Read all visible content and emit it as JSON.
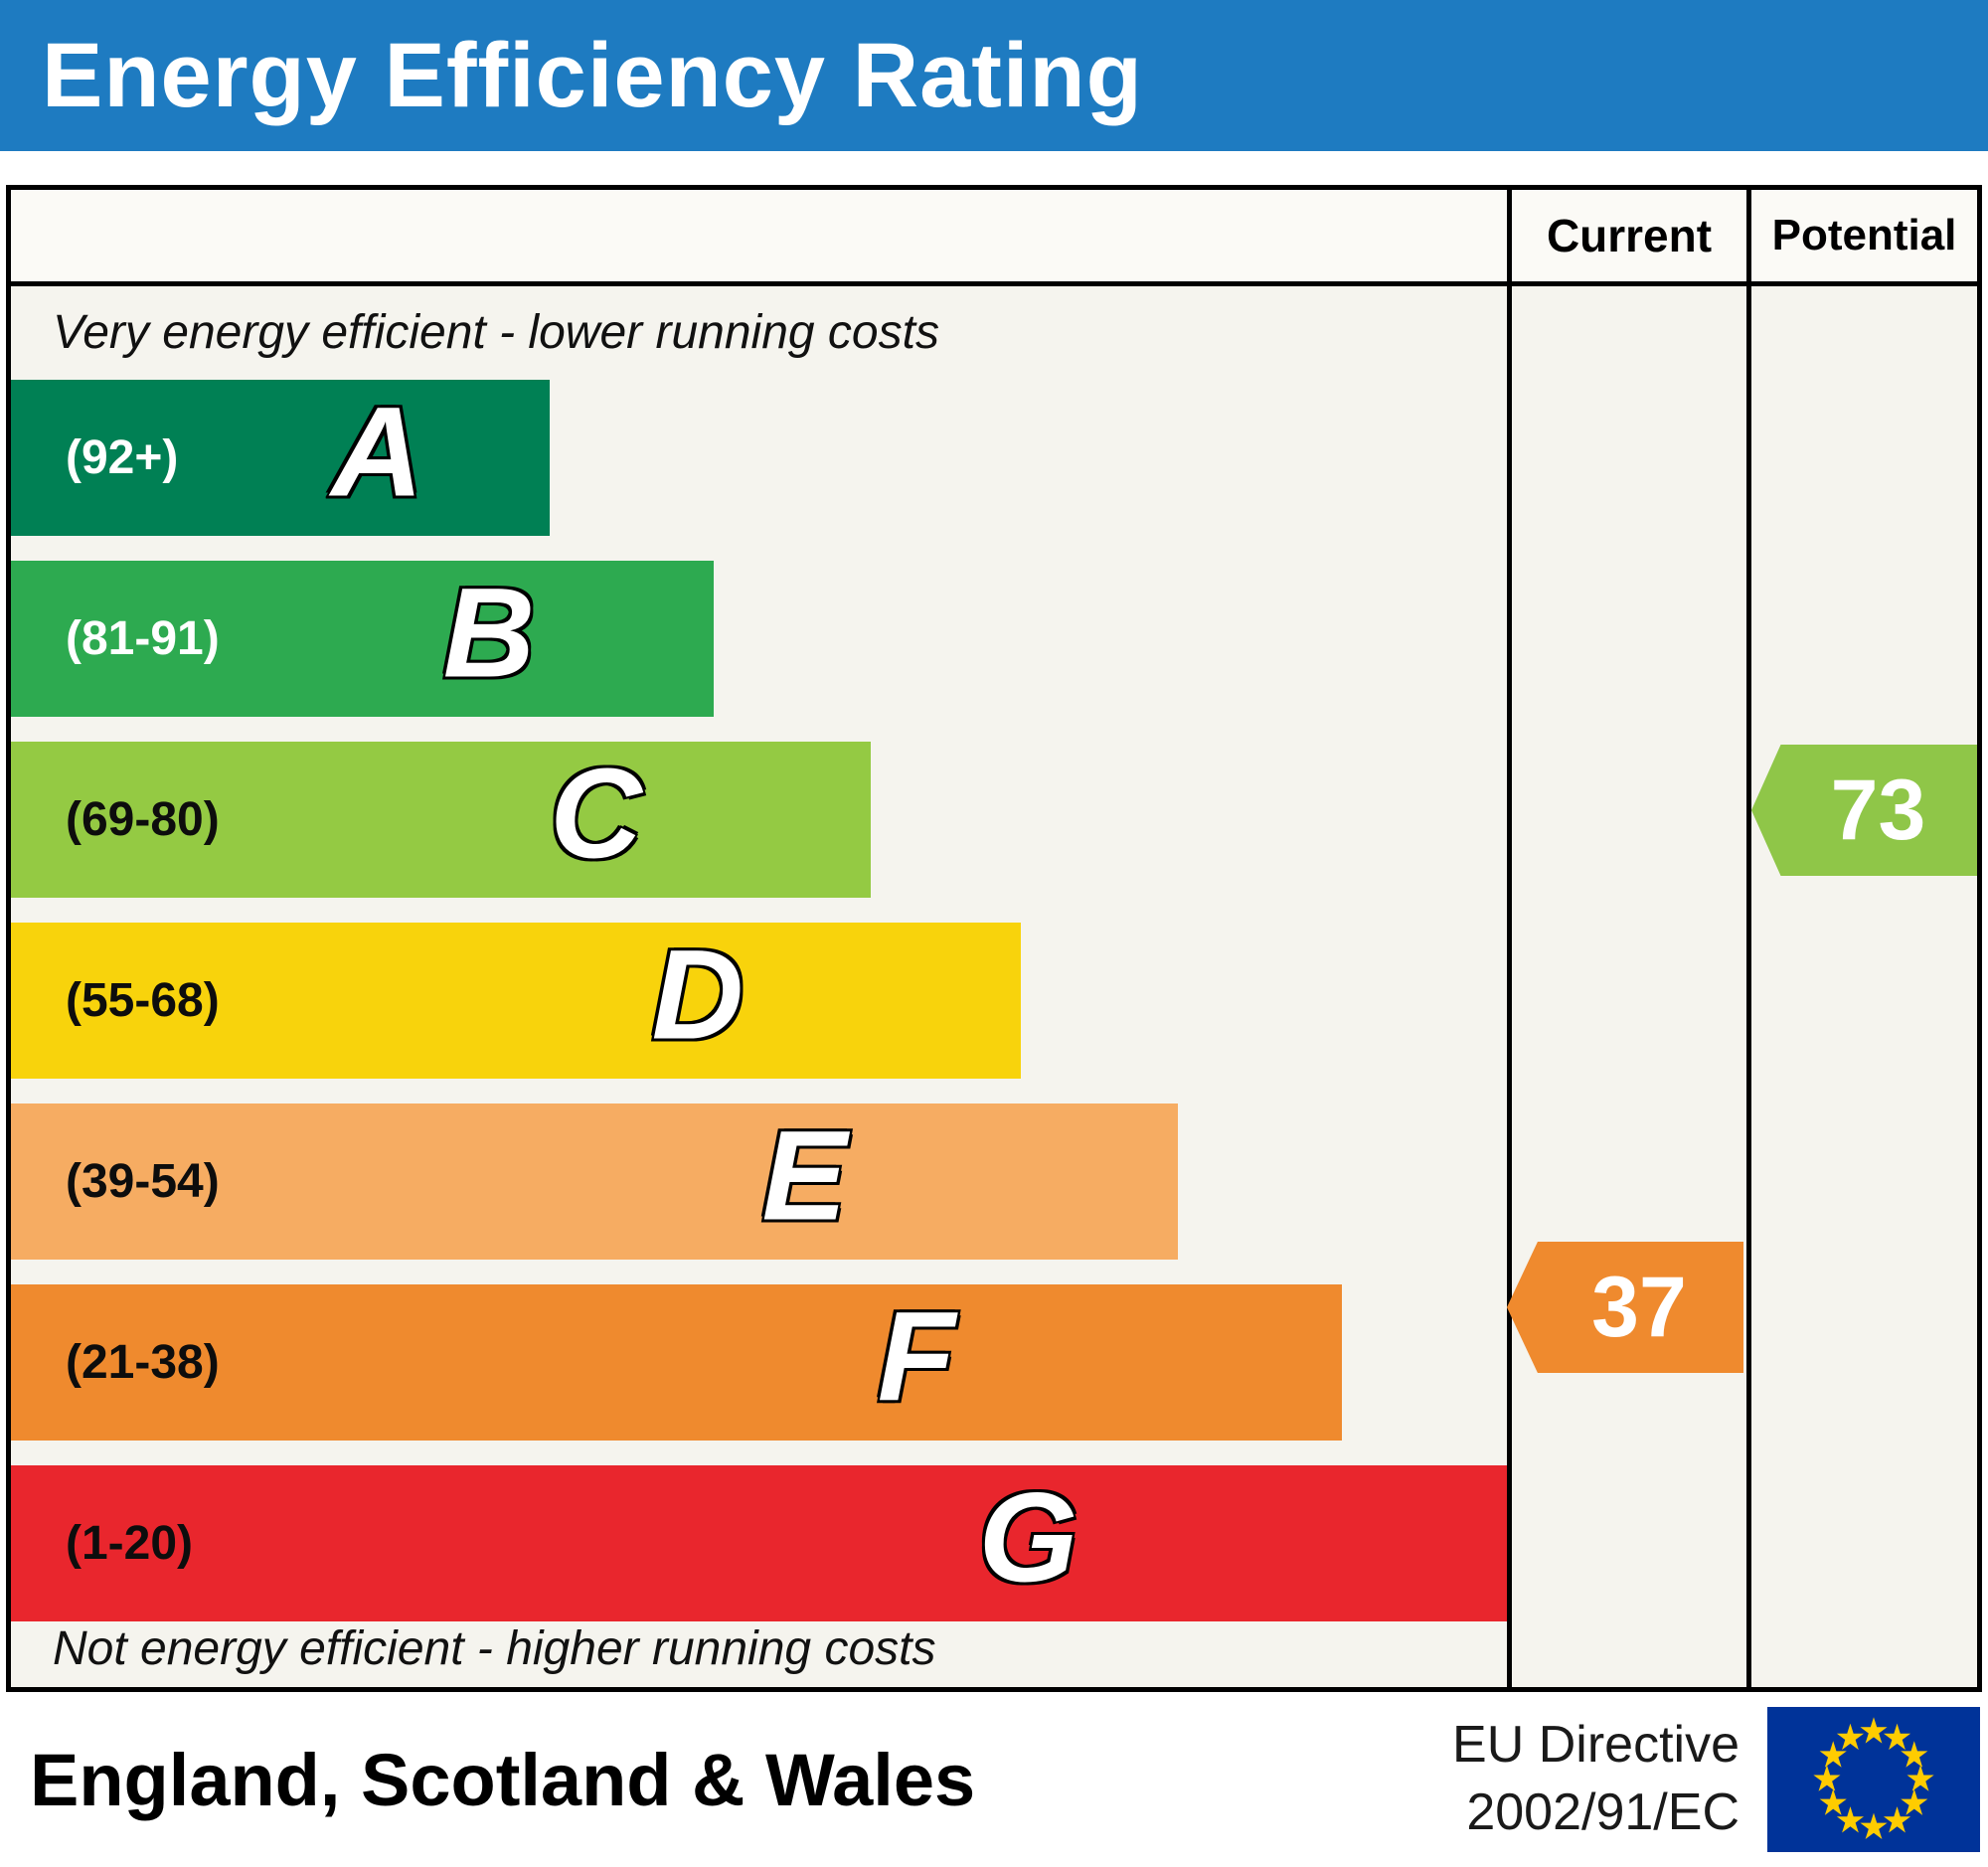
{
  "title": "Energy Efficiency Rating",
  "columns": {
    "current_label": "Current",
    "potential_label": "Potential"
  },
  "notes": {
    "top": "Very energy efficient - lower running costs",
    "bottom": "Not energy efficient - higher running costs"
  },
  "colors": {
    "header_blue": "#1e7bc1",
    "frame_background": "#f5f4ee"
  },
  "bands": [
    {
      "letter": "A",
      "range": "(92+)",
      "color": "#008054",
      "width_pct": 36,
      "text_color": "#ffffff"
    },
    {
      "letter": "B",
      "range": "(81-91)",
      "color": "#2daa50",
      "width_pct": 47,
      "text_color": "#ffffff"
    },
    {
      "letter": "C",
      "range": "(69-80)",
      "color": "#94ca43",
      "width_pct": 57.5,
      "text_color": "#0d0d0d"
    },
    {
      "letter": "D",
      "range": "(55-68)",
      "color": "#f8d30c",
      "width_pct": 67.5,
      "text_color": "#0d0d0d"
    },
    {
      "letter": "E",
      "range": "(39-54)",
      "color": "#f6ac62",
      "width_pct": 78,
      "text_color": "#0d0d0d"
    },
    {
      "letter": "F",
      "range": "(21-38)",
      "color": "#ef8a2e",
      "width_pct": 89,
      "text_color": "#0d0d0d"
    },
    {
      "letter": "G",
      "range": "(1-20)",
      "color": "#e9262d",
      "width_pct": 100,
      "text_color": "#0d0d0d"
    }
  ],
  "markers": {
    "current": {
      "value": "37",
      "color": "#ef8a2e",
      "band": "F"
    },
    "potential": {
      "value": "73",
      "color": "#8fc648",
      "band": "C"
    }
  },
  "footer": {
    "region": "England, Scotland & Wales",
    "directive_line1": "EU Directive",
    "directive_line2": "2002/91/EC",
    "flag_icon": "eu-flag",
    "flag_colors": {
      "field": "#003399",
      "stars": "#ffcc00"
    }
  },
  "chart_data": {
    "type": "bar",
    "title": "Energy Efficiency Rating",
    "categories": [
      "A",
      "B",
      "C",
      "D",
      "E",
      "F",
      "G"
    ],
    "ranges": [
      "92+",
      "81-91",
      "69-80",
      "55-68",
      "39-54",
      "21-38",
      "1-20"
    ],
    "bar_colors": [
      "#008054",
      "#2daa50",
      "#94ca43",
      "#f8d30c",
      "#f6ac62",
      "#ef8a2e",
      "#e9262d"
    ],
    "relative_bar_widths_pct": [
      36,
      47,
      57.5,
      67.5,
      78,
      89,
      100
    ],
    "current_rating": 37,
    "current_band": "F",
    "potential_rating": 73,
    "potential_band": "C",
    "top_note": "Very energy efficient - lower running costs",
    "bottom_note": "Not energy efficient - higher running costs",
    "region": "England, Scotland & Wales",
    "directive": "EU Directive 2002/91/EC"
  }
}
